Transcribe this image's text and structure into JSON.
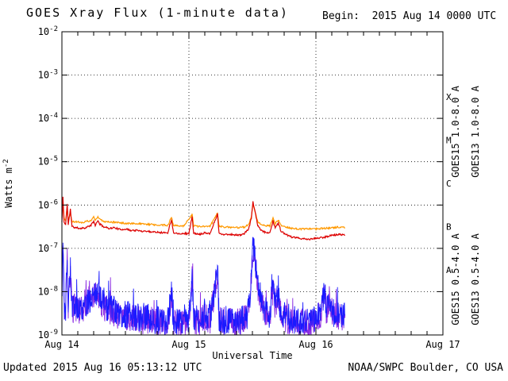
{
  "header": {
    "title": "GOES Xray Flux (1-minute data)",
    "begin_label": "Begin:  2015 Aug 14 0000 UTC"
  },
  "footer": {
    "updated": "Updated 2015 Aug 16 05:13:12 UTC",
    "credit": "NOAA/SWPC Boulder, CO USA"
  },
  "chart_data": {
    "type": "line",
    "title": "GOES Xray Flux (1-minute data)",
    "subtitle": "Begin:  2015 Aug 14 0000 UTC",
    "xlabel": "Universal Time",
    "ylabel": "Watts m^-2",
    "x_axis": {
      "range_hours": 72,
      "tick_hours": [
        0,
        24,
        48,
        72
      ],
      "tick_labels": [
        "Aug 14",
        "Aug 15",
        "Aug 16",
        "Aug 17"
      ],
      "minor_tick_hours": 3,
      "gridline_hours": [
        24,
        48
      ]
    },
    "y_axis": {
      "log_max_exp": -2,
      "log_min_exp": -9,
      "tick_exponents": [
        -2,
        -3,
        -4,
        -5,
        -6,
        -7,
        -8,
        -9
      ],
      "grid_exponents": [
        -3,
        -4,
        -5,
        -6,
        -7,
        -8
      ]
    },
    "flare_classes": [
      {
        "label": "X",
        "mid_exp": -3.5
      },
      {
        "label": "M",
        "mid_exp": -4.5
      },
      {
        "label": "C",
        "mid_exp": -5.5
      },
      {
        "label": "B",
        "mid_exp": -6.5
      },
      {
        "label": "A",
        "mid_exp": -7.5
      }
    ],
    "right_labels": [
      {
        "text": "GOES15 1.0-8.0 A",
        "color": "#dd0000",
        "col": 0,
        "row": 0
      },
      {
        "text": "GOES13 1.0-8.0 A",
        "color": "#ff9900",
        "col": 1,
        "row": 0
      },
      {
        "text": "GOES15 0.5-4.0 A",
        "color": "#1a1aff",
        "col": 0,
        "row": 1
      },
      {
        "text": "GOES13 0.5-4.0 A",
        "color": "#8a2be2",
        "col": 1,
        "row": 1
      }
    ],
    "sample_hours": {
      "long": 0.1,
      "short": 0.06
    },
    "series": [
      {
        "name": "GOES13 0.5-4.0 A",
        "satellite": "GOES13",
        "band": "0.5-4.0 A",
        "color": "#8a2be2",
        "width": 0.9,
        "kind": "short",
        "noise_dex": 0.33,
        "spike_prob": 0.04,
        "spike_dex": 0.5,
        "seed": 33,
        "points": [
          [
            0,
            4.5e-09
          ],
          [
            0.2,
            1e-07
          ],
          [
            0.4,
            4.5e-09
          ],
          [
            0.7,
            3.6e-09
          ],
          [
            1.0,
            5.5e-08
          ],
          [
            1.2,
            3.6e-09
          ],
          [
            1.6,
            3.2e-08
          ],
          [
            1.9,
            3.6e-09
          ],
          [
            2.5,
            4.5e-09
          ],
          [
            3.5,
            3.6e-09
          ],
          [
            4.5,
            4.5e-09
          ],
          [
            5.5,
            6.3e-09
          ],
          [
            6,
            8e-09
          ],
          [
            6.8,
            9e-09
          ],
          [
            7.2,
            6.3e-09
          ],
          [
            8,
            4.5e-09
          ],
          [
            9,
            3.6e-09
          ],
          [
            10,
            3.2e-09
          ],
          [
            11,
            2.7e-09
          ],
          [
            12,
            2.7e-09
          ],
          [
            13,
            2.5e-09
          ],
          [
            14,
            2.3e-09
          ],
          [
            15,
            2.2e-09
          ],
          [
            16,
            2.2e-09
          ],
          [
            17,
            2.1e-09
          ],
          [
            18,
            2e-09
          ],
          [
            19,
            1.9e-09
          ],
          [
            20,
            2e-09
          ],
          [
            20.7,
            8e-09
          ],
          [
            21.1,
            2e-09
          ],
          [
            22,
            1.9e-09
          ],
          [
            23,
            1.8e-09
          ],
          [
            24,
            1.9e-09
          ],
          [
            24.6,
            1.9e-08
          ],
          [
            24.9,
            2.1e-09
          ],
          [
            26,
            2e-09
          ],
          [
            27,
            2.5e-09
          ],
          [
            28,
            2.2e-09
          ],
          [
            29.4,
            2.8e-08
          ],
          [
            29.7,
            2.2e-09
          ],
          [
            31,
            2e-09
          ],
          [
            32.5,
            1.9e-09
          ],
          [
            34,
            2e-09
          ],
          [
            35,
            2.5e-09
          ],
          [
            35.6,
            9e-09
          ],
          [
            36.0,
            7e-08
          ],
          [
            36.2,
            9e-08
          ],
          [
            36.6,
            3.8e-08
          ],
          [
            37,
            1.4e-08
          ],
          [
            37.6,
            6.3e-09
          ],
          [
            38.3,
            3.6e-09
          ],
          [
            39.3,
            2.7e-09
          ],
          [
            39.9,
            1.1e-08
          ],
          [
            40.3,
            4e-09
          ],
          [
            40.9,
            8e-09
          ],
          [
            41.4,
            2.9e-09
          ],
          [
            42.2,
            2.3e-09
          ],
          [
            43.5,
            2.1e-09
          ],
          [
            45,
            1.9e-09
          ],
          [
            46.5,
            1.9e-09
          ],
          [
            48,
            2.1e-09
          ],
          [
            49,
            3.2e-09
          ],
          [
            49.6,
            1e-08
          ],
          [
            50,
            3.2e-09
          ],
          [
            50.6,
            7e-09
          ],
          [
            51.2,
            2.9e-09
          ],
          [
            52.2,
            2.7e-09
          ],
          [
            53.5,
            2.5e-09
          ]
        ]
      },
      {
        "name": "GOES15 0.5-4.0 A",
        "satellite": "GOES15",
        "band": "0.5-4.0 A",
        "color": "#1a1aff",
        "width": 0.9,
        "kind": "short",
        "noise_dex": 0.33,
        "spike_prob": 0.04,
        "spike_dex": 0.5,
        "seed": 44,
        "points": [
          [
            0,
            5e-09
          ],
          [
            0.2,
            1.3e-07
          ],
          [
            0.4,
            5e-09
          ],
          [
            0.7,
            4e-09
          ],
          [
            1.0,
            7e-08
          ],
          [
            1.2,
            4e-09
          ],
          [
            1.6,
            4e-08
          ],
          [
            1.9,
            4e-09
          ],
          [
            2.5,
            5e-09
          ],
          [
            3.5,
            4e-09
          ],
          [
            4.5,
            5e-09
          ],
          [
            5.5,
            7e-09
          ],
          [
            6,
            9e-09
          ],
          [
            6.8,
            1e-08
          ],
          [
            7.2,
            7e-09
          ],
          [
            8,
            5e-09
          ],
          [
            9,
            4e-09
          ],
          [
            10,
            3.5e-09
          ],
          [
            11,
            3e-09
          ],
          [
            12,
            3e-09
          ],
          [
            13,
            2.8e-09
          ],
          [
            14,
            2.6e-09
          ],
          [
            15,
            2.5e-09
          ],
          [
            16,
            2.4e-09
          ],
          [
            17,
            2.3e-09
          ],
          [
            18,
            2.2e-09
          ],
          [
            19,
            2.1e-09
          ],
          [
            20,
            2.2e-09
          ],
          [
            20.7,
            9e-09
          ],
          [
            21.1,
            2.2e-09
          ],
          [
            22,
            2.1e-09
          ],
          [
            23,
            2e-09
          ],
          [
            24,
            2.1e-09
          ],
          [
            24.6,
            2.2e-08
          ],
          [
            24.9,
            2.3e-09
          ],
          [
            26,
            2.2e-09
          ],
          [
            27,
            2.8e-09
          ],
          [
            28,
            2.4e-09
          ],
          [
            29.4,
            3.2e-08
          ],
          [
            29.7,
            2.4e-09
          ],
          [
            31,
            2.2e-09
          ],
          [
            32.5,
            2.1e-09
          ],
          [
            34,
            2.2e-09
          ],
          [
            35,
            2.8e-09
          ],
          [
            35.6,
            1e-08
          ],
          [
            36.0,
            8e-08
          ],
          [
            36.2,
            1.1e-07
          ],
          [
            36.6,
            4.5e-08
          ],
          [
            37,
            1.6e-08
          ],
          [
            37.6,
            7e-09
          ],
          [
            38.3,
            4e-09
          ],
          [
            39.3,
            3e-09
          ],
          [
            39.9,
            1.3e-08
          ],
          [
            40.3,
            4.5e-09
          ],
          [
            40.9,
            9e-09
          ],
          [
            41.4,
            3.2e-09
          ],
          [
            42.2,
            2.6e-09
          ],
          [
            43.5,
            2.3e-09
          ],
          [
            45,
            2.1e-09
          ],
          [
            46.5,
            2.1e-09
          ],
          [
            48,
            2.3e-09
          ],
          [
            49,
            3.5e-09
          ],
          [
            49.6,
            1.1e-08
          ],
          [
            50,
            3.5e-09
          ],
          [
            50.6,
            8e-09
          ],
          [
            51.2,
            3.2e-09
          ],
          [
            52.2,
            3e-09
          ],
          [
            53.5,
            2.8e-09
          ]
        ]
      },
      {
        "name": "GOES13 1.0-8.0 A",
        "satellite": "GOES13",
        "band": "1.0-8.0 A",
        "color": "#ff9900",
        "width": 1.2,
        "kind": "long",
        "noise_dex": 0.02,
        "spike_prob": 0,
        "spike_dex": 0,
        "seed": 22,
        "points": [
          [
            0,
            5e-07
          ],
          [
            0.2,
            1.2e-06
          ],
          [
            0.4,
            5e-07
          ],
          [
            0.7,
            4.5e-07
          ],
          [
            1.0,
            8.5e-07
          ],
          [
            1.2,
            4.5e-07
          ],
          [
            1.6,
            6.5e-07
          ],
          [
            1.9,
            4.3e-07
          ],
          [
            2.5,
            4.1e-07
          ],
          [
            4,
            4e-07
          ],
          [
            5.5,
            4.4e-07
          ],
          [
            6.0,
            5.2e-07
          ],
          [
            6.3,
            4.4e-07
          ],
          [
            6.8,
            5.3e-07
          ],
          [
            7.2,
            4.6e-07
          ],
          [
            8,
            4.2e-07
          ],
          [
            10,
            4e-07
          ],
          [
            12,
            3.8e-07
          ],
          [
            14,
            3.7e-07
          ],
          [
            16,
            3.6e-07
          ],
          [
            18,
            3.5e-07
          ],
          [
            20,
            3.4e-07
          ],
          [
            20.7,
            5.2e-07
          ],
          [
            21.1,
            3.4e-07
          ],
          [
            23,
            3.3e-07
          ],
          [
            24.6,
            6e-07
          ],
          [
            24.9,
            3.3e-07
          ],
          [
            26,
            3.2e-07
          ],
          [
            28,
            3.2e-07
          ],
          [
            29.4,
            6.6e-07
          ],
          [
            29.7,
            3.2e-07
          ],
          [
            31,
            3.1e-07
          ],
          [
            33,
            3e-07
          ],
          [
            34.5,
            3.1e-07
          ],
          [
            35.3,
            3.6e-07
          ],
          [
            35.8,
            5.5e-07
          ],
          [
            36.1,
            1.05e-06
          ],
          [
            36.5,
            7.2e-07
          ],
          [
            37,
            4.1e-07
          ],
          [
            37.6,
            3.5e-07
          ],
          [
            38.5,
            3.3e-07
          ],
          [
            39.3,
            3.3e-07
          ],
          [
            39.9,
            4.9e-07
          ],
          [
            40.3,
            3.7e-07
          ],
          [
            40.9,
            4.5e-07
          ],
          [
            41.4,
            3.4e-07
          ],
          [
            42.2,
            3.1e-07
          ],
          [
            43.5,
            2.9e-07
          ],
          [
            45,
            2.8e-07
          ],
          [
            46.5,
            2.8e-07
          ],
          [
            48,
            2.8e-07
          ],
          [
            49.5,
            2.9e-07
          ],
          [
            51,
            3e-07
          ],
          [
            52.5,
            3.1e-07
          ],
          [
            53.5,
            3e-07
          ]
        ]
      },
      {
        "name": "GOES15 1.0-8.0 A",
        "satellite": "GOES15",
        "band": "1.0-8.0 A",
        "color": "#dd0000",
        "width": 1.2,
        "kind": "long",
        "noise_dex": 0.02,
        "spike_prob": 0,
        "spike_dex": 0,
        "seed": 11,
        "points": [
          [
            0,
            4e-07
          ],
          [
            0.2,
            1.5e-06
          ],
          [
            0.4,
            4e-07
          ],
          [
            0.7,
            3.5e-07
          ],
          [
            1.0,
            1.05e-06
          ],
          [
            1.2,
            3.5e-07
          ],
          [
            1.6,
            8e-07
          ],
          [
            1.9,
            3.2e-07
          ],
          [
            2.5,
            3e-07
          ],
          [
            3.5,
            2.9e-07
          ],
          [
            4.5,
            3e-07
          ],
          [
            5.5,
            3.4e-07
          ],
          [
            6.0,
            4.2e-07
          ],
          [
            6.3,
            3.4e-07
          ],
          [
            6.8,
            4.3e-07
          ],
          [
            7.2,
            3.6e-07
          ],
          [
            8,
            3.1e-07
          ],
          [
            9,
            2.9e-07
          ],
          [
            10,
            3e-07
          ],
          [
            11,
            2.7e-07
          ],
          [
            12,
            2.8e-07
          ],
          [
            13,
            2.6e-07
          ],
          [
            14,
            2.6e-07
          ],
          [
            15,
            2.5e-07
          ],
          [
            16,
            2.5e-07
          ],
          [
            17,
            2.4e-07
          ],
          [
            18,
            2.4e-07
          ],
          [
            19,
            2.3e-07
          ],
          [
            20,
            2.3e-07
          ],
          [
            20.7,
            4.6e-07
          ],
          [
            21.1,
            2.3e-07
          ],
          [
            22,
            2.2e-07
          ],
          [
            23,
            2.2e-07
          ],
          [
            24,
            2.2e-07
          ],
          [
            24.6,
            5.5e-07
          ],
          [
            24.9,
            2.2e-07
          ],
          [
            26,
            2.1e-07
          ],
          [
            27,
            2.3e-07
          ],
          [
            28,
            2.2e-07
          ],
          [
            29.4,
            6.2e-07
          ],
          [
            29.7,
            2.2e-07
          ],
          [
            30.5,
            2.1e-07
          ],
          [
            32,
            2.1e-07
          ],
          [
            33.5,
            2e-07
          ],
          [
            34.5,
            2.2e-07
          ],
          [
            35.3,
            2.8e-07
          ],
          [
            35.8,
            5e-07
          ],
          [
            36.1,
            1.2e-06
          ],
          [
            36.5,
            7e-07
          ],
          [
            37,
            3.4e-07
          ],
          [
            37.6,
            2.6e-07
          ],
          [
            38.5,
            2.3e-07
          ],
          [
            39.3,
            2.3e-07
          ],
          [
            39.9,
            4.3e-07
          ],
          [
            40.3,
            2.9e-07
          ],
          [
            40.9,
            3.9e-07
          ],
          [
            41.4,
            2.5e-07
          ],
          [
            42.2,
            2.1e-07
          ],
          [
            43.5,
            1.8e-07
          ],
          [
            45,
            1.7e-07
          ],
          [
            46.5,
            1.6e-07
          ],
          [
            48,
            1.7e-07
          ],
          [
            49.5,
            1.8e-07
          ],
          [
            51,
            2e-07
          ],
          [
            52.5,
            2.1e-07
          ],
          [
            53.5,
            2e-07
          ]
        ]
      }
    ]
  }
}
